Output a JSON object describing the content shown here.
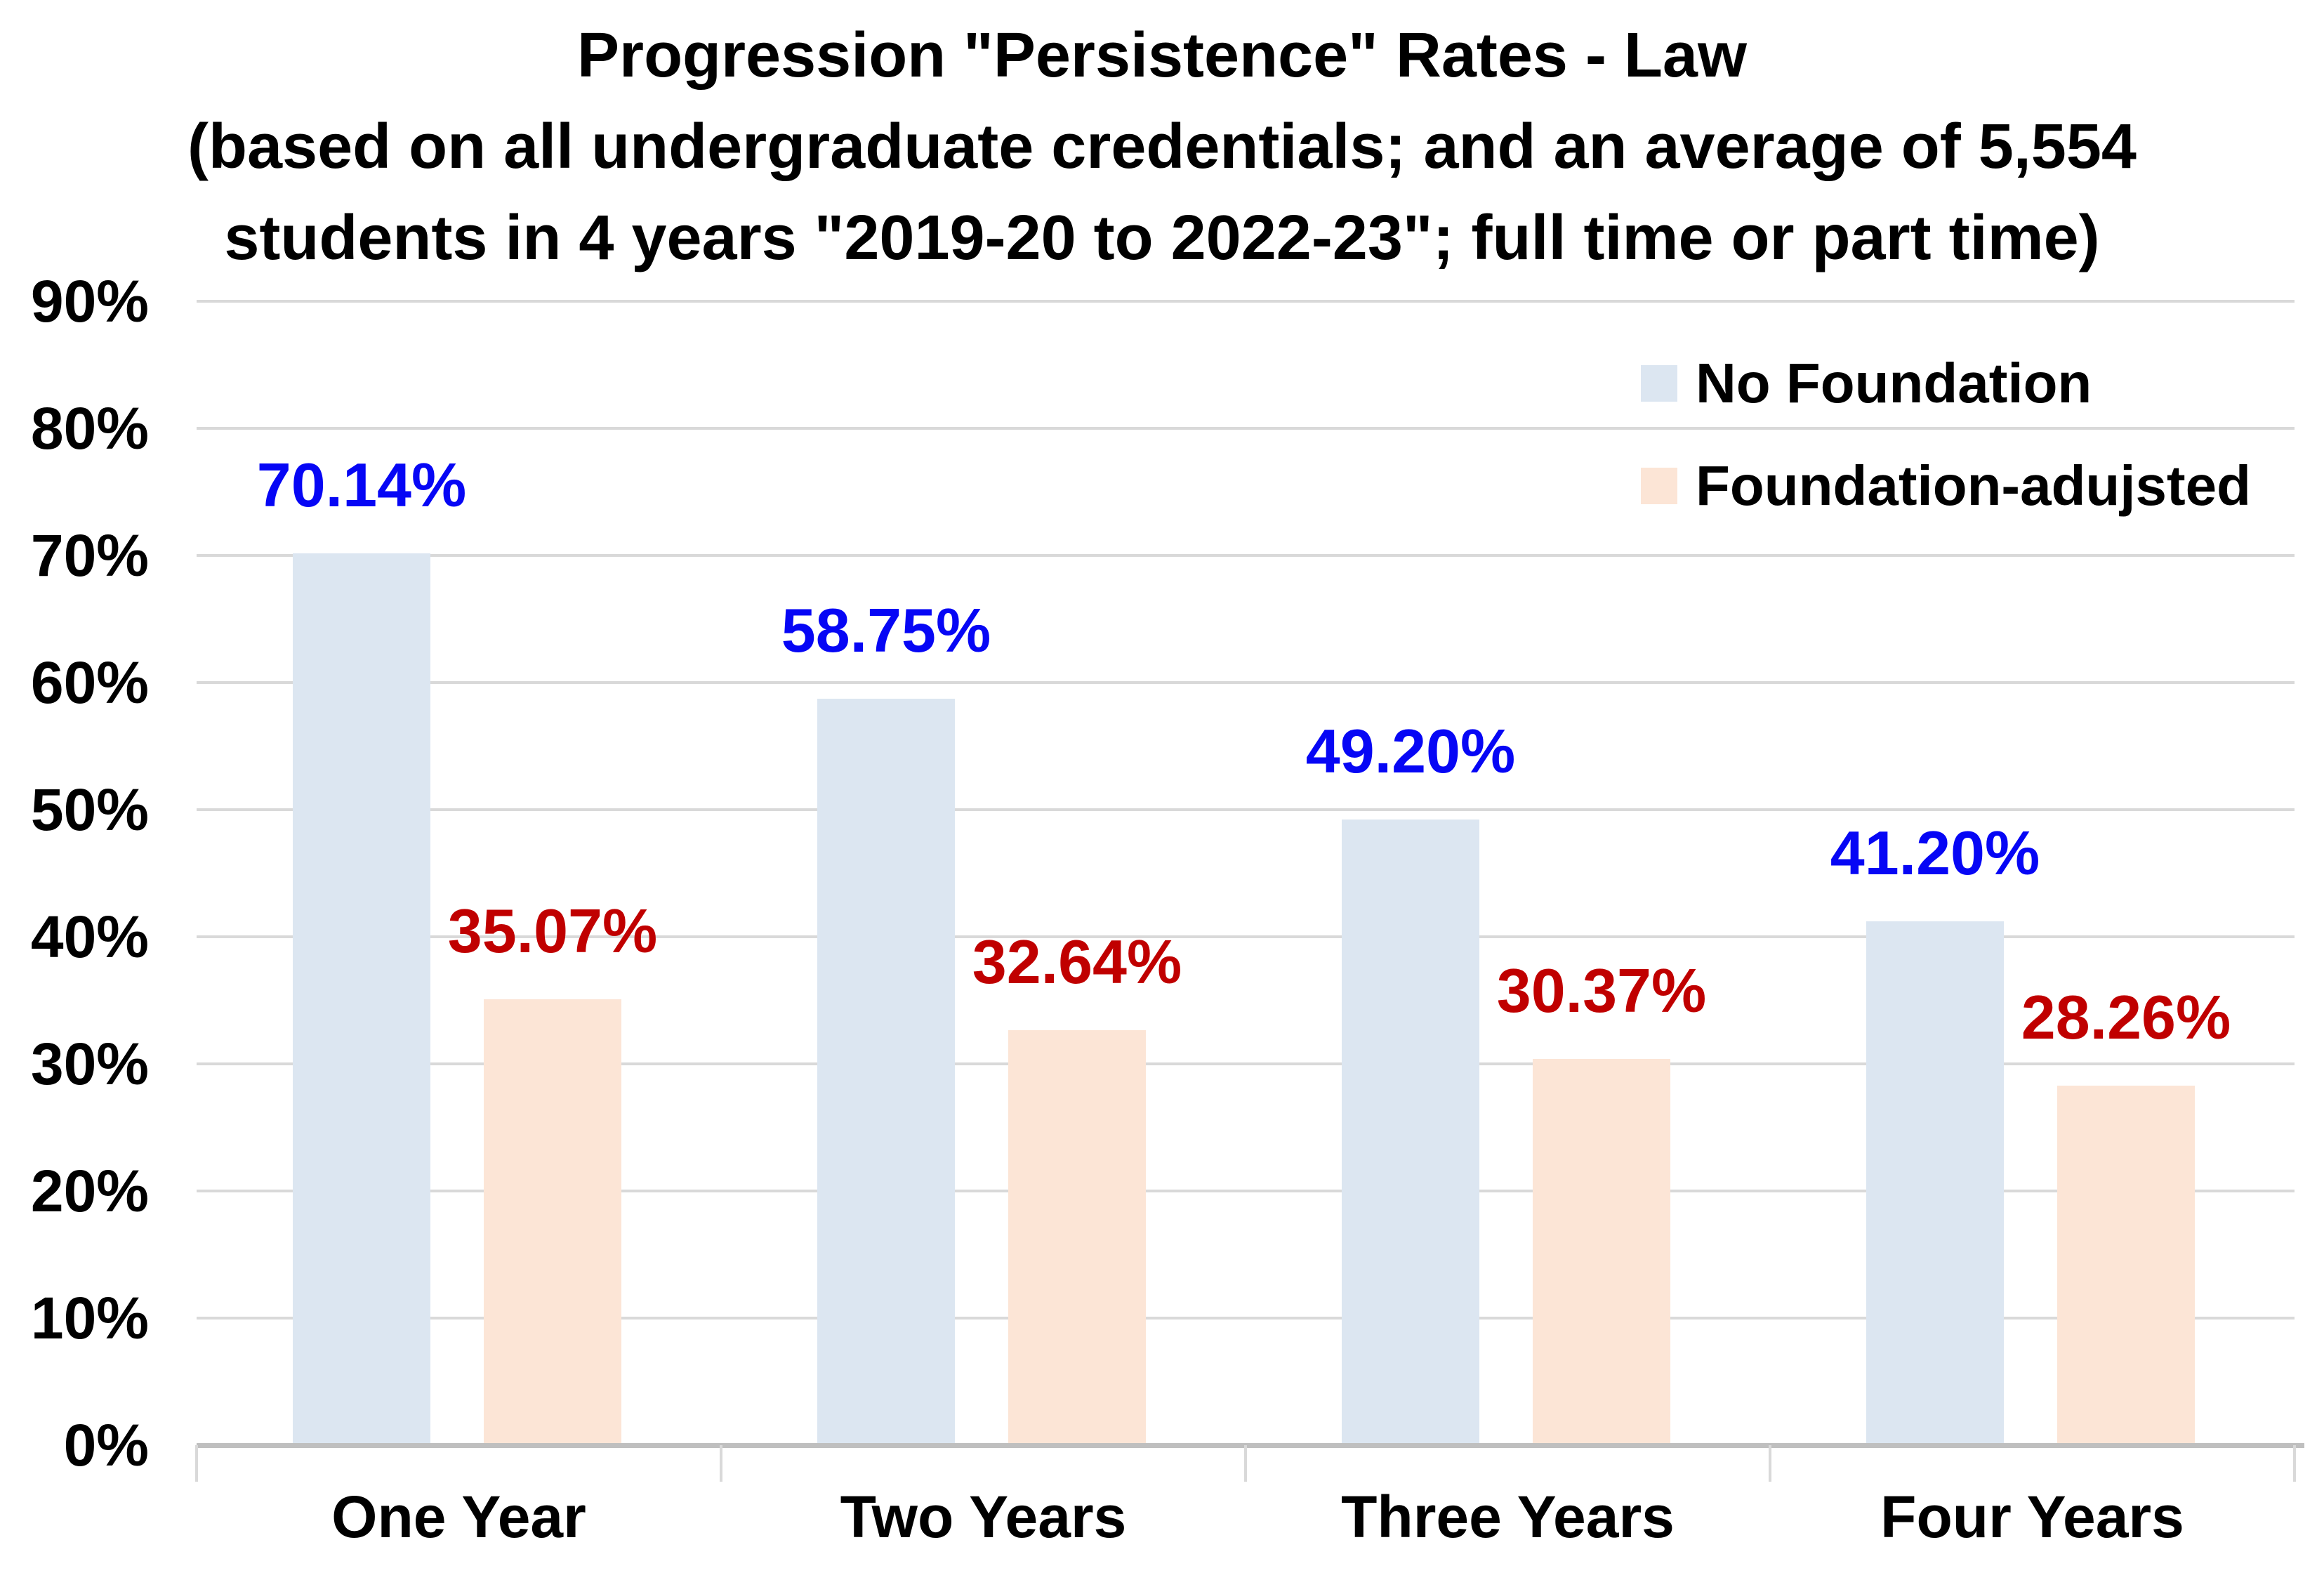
{
  "title": {
    "lines": [
      "Progression \"Persistence\" Rates - Law",
      "(based on all undergraduate credentials; and an average of 5,554",
      "students in 4 years \"2019-20 to 2022-23\"; full time or part time)"
    ]
  },
  "colors": {
    "background": "#ffffff",
    "gridline": "#d9d9d9",
    "axis_line": "#bfbfbf",
    "title_text": "#000000",
    "no_foundation_bar": "#dce6f1",
    "foundation_adjusted_bar": "#fce5d6",
    "no_foundation_label": "#0606f5",
    "foundation_adjusted_label": "#c00000"
  },
  "chart_data": {
    "type": "bar",
    "title": "Progression \"Persistence\" Rates - Law (based on all undergraduate credentials; and an average of 5,554 students in 4 years \"2019-20 to 2022-23\"; full time or part time)",
    "categories": [
      "One Year",
      "Two Years",
      "Three Years",
      "Four Years"
    ],
    "series": [
      {
        "name": "No Foundation",
        "color": "#dce6f1",
        "label_color": "#0606f5",
        "values": [
          70.14,
          58.75,
          49.2,
          41.2
        ],
        "labels": [
          "70.14%",
          "58.75%",
          "49.20%",
          "41.20%"
        ]
      },
      {
        "name": "Foundation-adujsted",
        "color": "#fce5d6",
        "label_color": "#c00000",
        "values": [
          35.07,
          32.64,
          30.37,
          28.26
        ],
        "labels": [
          "35.07%",
          "32.64%",
          "30.37%",
          "28.26%"
        ]
      }
    ],
    "xlabel": "",
    "ylabel": "",
    "ylim": [
      0,
      90
    ],
    "ytick_values": [
      0,
      10,
      20,
      30,
      40,
      50,
      60,
      70,
      80,
      90
    ],
    "ytick_labels": [
      "0%",
      "10%",
      "20%",
      "30%",
      "40%",
      "50%",
      "60%",
      "70%",
      "80%",
      "90%"
    ],
    "grid": true,
    "legend_position": "top-right"
  }
}
